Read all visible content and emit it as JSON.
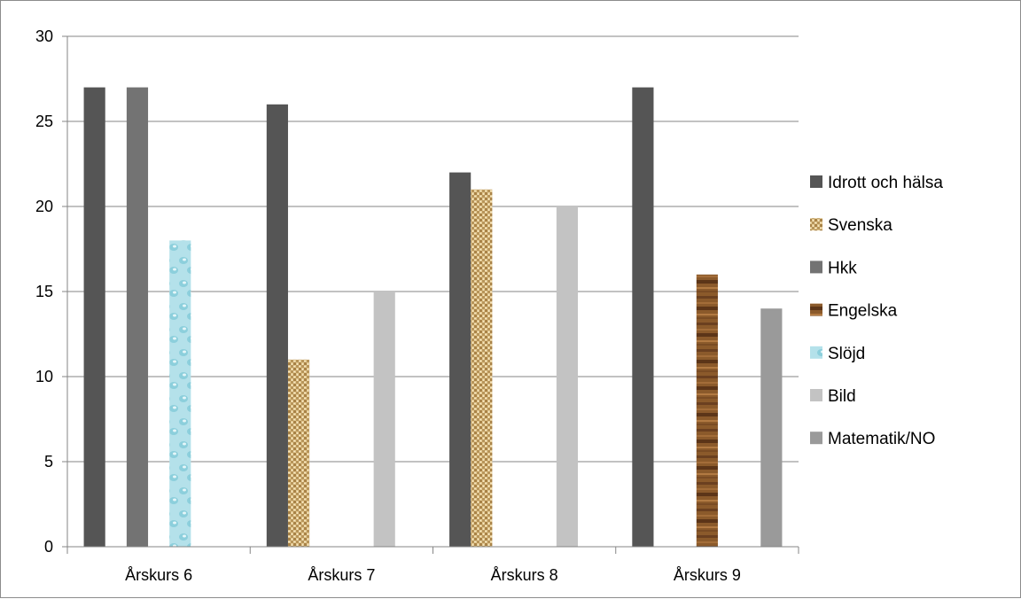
{
  "chart_data": {
    "type": "bar",
    "categories": [
      "Årskurs 6",
      "Årskurs 7",
      "Årskurs 8",
      "Årskurs 9"
    ],
    "ylim": [
      0,
      30
    ],
    "yticks": [
      0,
      5,
      10,
      15,
      20,
      25,
      30
    ],
    "grid": true,
    "legend_position": "right",
    "series": [
      {
        "name": "Idrott och hälsa",
        "values": [
          27,
          26,
          22,
          27
        ],
        "color": "#555555",
        "fill": "solid"
      },
      {
        "name": "Svenska",
        "values": [
          null,
          11,
          21,
          null
        ],
        "color": "#c9a96a",
        "fill": "burlap-texture"
      },
      {
        "name": "Hkk",
        "values": [
          27,
          null,
          null,
          null
        ],
        "color": "#737373",
        "fill": "solid"
      },
      {
        "name": "Engelska",
        "values": [
          null,
          null,
          null,
          16
        ],
        "color": "#8b5a2b",
        "fill": "wood-texture"
      },
      {
        "name": "Slöjd",
        "values": [
          18,
          null,
          null,
          null
        ],
        "color": "#a9dbe6",
        "fill": "water-texture"
      },
      {
        "name": "Bild",
        "values": [
          null,
          15,
          20,
          null
        ],
        "color": "#c3c3c3",
        "fill": "solid"
      },
      {
        "name": "Matematik/NO",
        "values": [
          null,
          null,
          null,
          14
        ],
        "color": "#9a9a9a",
        "fill": "solid"
      }
    ]
  }
}
